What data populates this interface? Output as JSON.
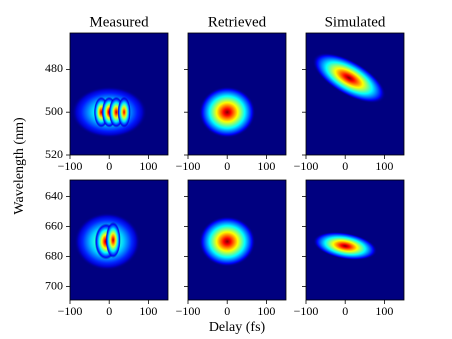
{
  "figure_labels": {
    "ylabel": "Wavelength (nm)",
    "xlabel": "Delay (fs)"
  },
  "chart_data": [
    {
      "type": "heatmap",
      "title": "Measured",
      "show_ytick_labels": true,
      "xlim": [
        -100,
        150
      ],
      "xticks": [
        {
          "value": -100,
          "label": "−100"
        },
        0,
        100
      ],
      "ylim": [
        520,
        463
      ],
      "yticks": [
        480,
        500,
        520
      ],
      "blobs": [
        {
          "x": 0,
          "y": 500,
          "sx": 40,
          "sy": 5,
          "tilt_deg": 0,
          "peak": 0.6
        },
        {
          "x": -20,
          "y": 500,
          "sx": 8,
          "sy": 3,
          "tilt_deg": 0,
          "peak": 0.95
        },
        {
          "x": 0,
          "y": 500,
          "sx": 8,
          "sy": 3,
          "tilt_deg": 0,
          "peak": 1
        },
        {
          "x": 18,
          "y": 500,
          "sx": 8,
          "sy": 3,
          "tilt_deg": 0,
          "peak": 0.95
        },
        {
          "x": 38,
          "y": 500,
          "sx": 7,
          "sy": 3,
          "tilt_deg": 0,
          "peak": 0.9
        }
      ]
    },
    {
      "type": "heatmap",
      "title": "Retrieved",
      "show_ytick_labels": false,
      "xlim": [
        -100,
        150
      ],
      "xticks": [
        {
          "value": -100,
          "label": "−100"
        },
        0,
        100
      ],
      "ylim": [
        520,
        463
      ],
      "yticks": [
        480,
        500,
        520
      ],
      "blobs": [
        {
          "x": 0,
          "y": 500,
          "sx": 30,
          "sy": 5,
          "tilt_deg": 0,
          "peak": 1
        }
      ]
    },
    {
      "type": "heatmap",
      "title": "Simulated",
      "show_ytick_labels": false,
      "xlim": [
        -100,
        150
      ],
      "xticks": [
        {
          "value": -100,
          "label": "−100"
        },
        0,
        100
      ],
      "ylim": [
        520,
        463
      ],
      "yticks": [
        480,
        500,
        520
      ],
      "blobs": [
        {
          "x": 10,
          "y": 484,
          "sx": 18,
          "sy": 8,
          "tilt_deg": -60,
          "peak": 1
        }
      ]
    },
    {
      "type": "heatmap",
      "show_ytick_labels": true,
      "xlim": [
        -100,
        150
      ],
      "xticks": [
        {
          "value": -100,
          "label": "−100"
        },
        0,
        100
      ],
      "ylim": [
        709,
        629
      ],
      "yticks": [
        640,
        660,
        680,
        700
      ],
      "blobs": [
        {
          "x": -5,
          "y": 670,
          "sx": 35,
          "sy": 8,
          "tilt_deg": 0,
          "peak": 0.65
        },
        {
          "x": -8,
          "y": 670,
          "sx": 12,
          "sy": 5,
          "tilt_deg": 0,
          "peak": 1
        },
        {
          "x": 10,
          "y": 669,
          "sx": 8,
          "sy": 5,
          "tilt_deg": 0,
          "peak": 0.95
        }
      ]
    },
    {
      "type": "heatmap",
      "show_ytick_labels": false,
      "xlim": [
        -100,
        150
      ],
      "xticks": [
        {
          "value": -100,
          "label": "−100"
        },
        0,
        100
      ],
      "ylim": [
        709,
        629
      ],
      "yticks": [
        640,
        660,
        680,
        700
      ],
      "blobs": [
        {
          "x": 0,
          "y": 670,
          "sx": 30,
          "sy": 7,
          "tilt_deg": 0,
          "peak": 1
        }
      ]
    },
    {
      "type": "heatmap",
      "show_ytick_labels": false,
      "xlim": [
        -100,
        150
      ],
      "xticks": [
        {
          "value": -100,
          "label": "−100"
        },
        0,
        100
      ],
      "ylim": [
        709,
        629
      ],
      "yticks": [
        640,
        660,
        680,
        700
      ],
      "blobs": [
        {
          "x": 0,
          "y": 673,
          "sx": 14,
          "sy": 9,
          "tilt_deg": -80,
          "peak": 1
        }
      ]
    }
  ]
}
